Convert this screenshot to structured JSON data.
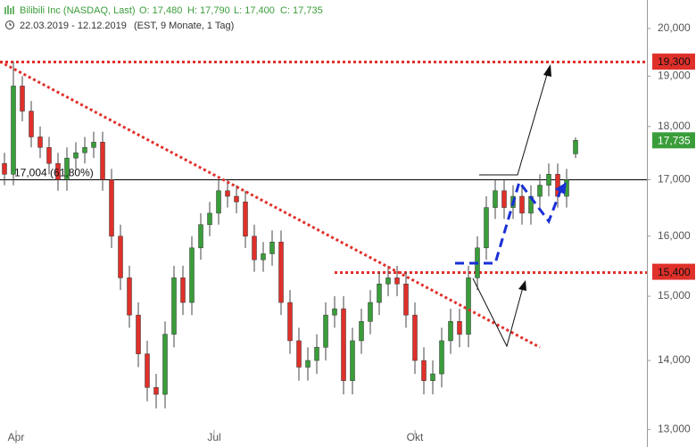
{
  "chart_data": {
    "type": "candlestick",
    "title": "Bilibili Inc (NASDAQ, Last)",
    "header_values": [
      "O: 17,480",
      "H: 17,790",
      "L: 17,400",
      "C: 17,735"
    ],
    "subtitle": "22.03.2019 - 12.12.2019",
    "info": "(EST, 9 Monate, 1 Tag)",
    "up_color": "#3a9d3a",
    "down_color": "#e0302a",
    "log_scale": true,
    "xlim": [
      -0.5,
      72
    ],
    "xticks": [
      {
        "value": 1.3,
        "label": "Apr"
      },
      {
        "value": 23.5,
        "label": "Jul"
      },
      {
        "value": 46,
        "label": "Okt"
      }
    ],
    "ylim": [
      12770,
      20620
    ],
    "yticks": [
      {
        "value": 13000,
        "label": "13,000"
      },
      {
        "value": 14000,
        "label": "14,000"
      },
      {
        "value": 15000,
        "label": "15,000"
      },
      {
        "value": 16000,
        "label": "16,000"
      },
      {
        "value": 17000,
        "label": "17,000"
      },
      {
        "value": 18000,
        "label": "18,000"
      },
      {
        "value": 19000,
        "label": "19,000"
      },
      {
        "value": 20000,
        "label": "20,000"
      }
    ],
    "open": [
      17300,
      17100,
      18800,
      18300,
      17800,
      17600,
      17300,
      17000,
      17400,
      17500,
      17600,
      17700,
      17000,
      16000,
      15300,
      14700,
      14100,
      13600,
      13500,
      14400,
      15300,
      14900,
      15800,
      16200,
      16400,
      16800,
      16700,
      16600,
      16000,
      15600,
      15700,
      15900,
      14900,
      14300,
      13900,
      14000,
      14200,
      14700,
      14800,
      13700,
      14300,
      14600,
      14900,
      15200,
      15300,
      15200,
      14700,
      14000,
      13700,
      13800,
      14300,
      14600,
      14400,
      15300,
      15800,
      16500,
      16800,
      16500,
      16700,
      16400,
      16700,
      16900,
      17100,
      16700,
      17480
    ],
    "high": [
      17500,
      19300,
      19000,
      18500,
      18000,
      17800,
      17500,
      17600,
      17700,
      17800,
      17900,
      17900,
      17200,
      16200,
      15500,
      14900,
      14300,
      13800,
      14600,
      15500,
      15500,
      16000,
      16400,
      16600,
      17000,
      17000,
      16900,
      16800,
      16200,
      15900,
      16100,
      16100,
      15100,
      14500,
      14200,
      14400,
      14900,
      15000,
      15000,
      14500,
      14800,
      15100,
      15400,
      15500,
      15500,
      15400,
      14900,
      14200,
      14000,
      14500,
      14800,
      14800,
      15500,
      16000,
      16700,
      17000,
      17000,
      16900,
      16900,
      16900,
      17100,
      17300,
      17300,
      17200,
      17790
    ],
    "low": [
      16900,
      16900,
      18100,
      17600,
      17400,
      17100,
      16800,
      16800,
      17200,
      17300,
      17400,
      16800,
      15800,
      15100,
      14500,
      13900,
      13400,
      13300,
      13300,
      14200,
      14700,
      14700,
      15600,
      16000,
      16200,
      16500,
      16400,
      15800,
      15400,
      15400,
      15500,
      14700,
      14100,
      13700,
      13700,
      13800,
      14000,
      14500,
      13500,
      13500,
      14100,
      14400,
      14700,
      15000,
      15000,
      14500,
      13800,
      13500,
      13500,
      13600,
      14100,
      14200,
      14200,
      15100,
      15600,
      16300,
      16300,
      16300,
      16200,
      16200,
      16500,
      16700,
      16500,
      16500,
      17400
    ],
    "close": [
      17100,
      18800,
      18300,
      17800,
      17600,
      17300,
      17000,
      17400,
      17500,
      17600,
      17700,
      17000,
      16000,
      15300,
      14700,
      14100,
      13600,
      13500,
      14400,
      15300,
      14900,
      15800,
      16200,
      16400,
      16800,
      16700,
      16600,
      16000,
      15600,
      15700,
      15900,
      14900,
      14300,
      13900,
      14000,
      14200,
      14700,
      14800,
      13700,
      14300,
      14600,
      14900,
      15200,
      15300,
      15200,
      14700,
      14000,
      13700,
      13800,
      14300,
      14600,
      14400,
      15300,
      15800,
      16500,
      16800,
      16500,
      16700,
      16400,
      16700,
      16900,
      17100,
      16700,
      17000,
      17735
    ],
    "levels": [
      {
        "value": 19300,
        "label": "19,300",
        "color": "#e0302a",
        "style": "dotted",
        "box": true
      },
      {
        "value": 15400,
        "label": "15,400",
        "color": "#e0302a",
        "style": "dotted",
        "box": true,
        "start": 37
      },
      {
        "value": 17735,
        "label": "17,735",
        "color": "#3a9d3a",
        "box": true
      },
      {
        "value": 17004,
        "label": "17,004 (61,80%)",
        "color": "#000000",
        "style": "solid",
        "box": false
      }
    ],
    "trendline": {
      "color": "#e0302a",
      "x": [
        -0.5,
        60
      ],
      "values": [
        19300,
        14200
      ]
    }
  }
}
